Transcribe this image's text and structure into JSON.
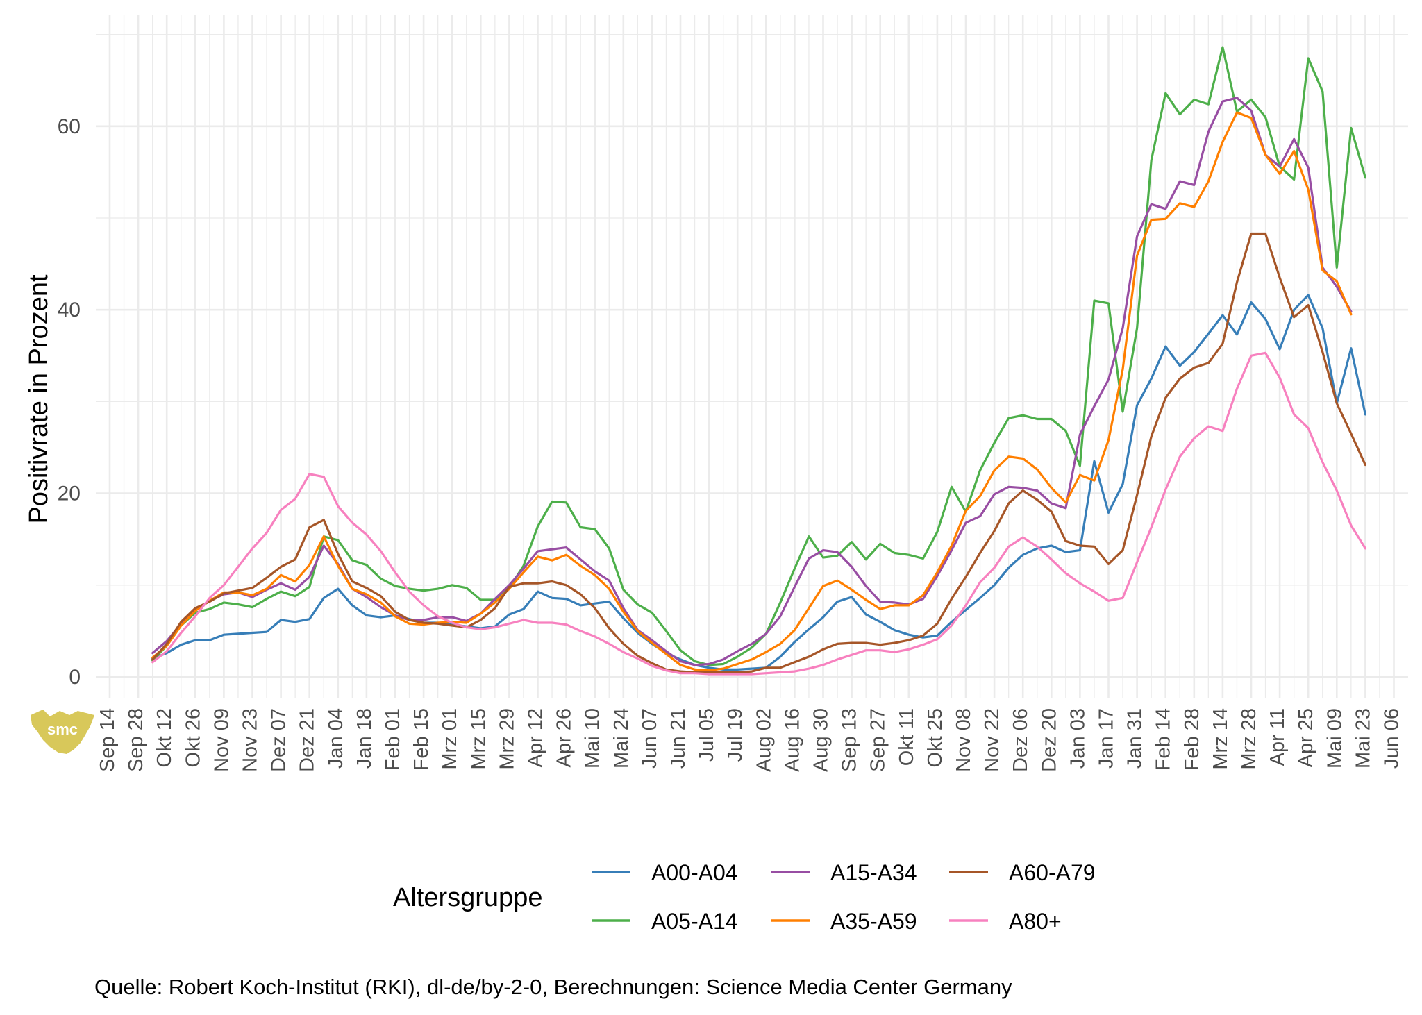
{
  "chart_data": {
    "type": "line",
    "title": "",
    "xlabel": "",
    "ylabel": "Positivrate in Prozent",
    "ylim": [
      -3,
      72
    ],
    "yticks": [
      0,
      20,
      40,
      60
    ],
    "grid": true,
    "legend_title": "Altersgruppe",
    "legend_position": "bottom",
    "caption": "Quelle: Robert Koch-Institut (RKI), dl-de/by-2-0, Berechnungen: Science Media Center Germany",
    "logo_text": "smc",
    "x_tick_labels": [
      "Sep 14",
      "Sep 28",
      "Okt 12",
      "Okt 26",
      "Nov 09",
      "Nov 23",
      "Dez 07",
      "Dez 21",
      "Jan 04",
      "Jan 18",
      "Feb 01",
      "Feb 15",
      "Mrz 01",
      "Mrz 15",
      "Mrz 29",
      "Apr 12",
      "Apr 26",
      "Mai 10",
      "Mai 24",
      "Jun 07",
      "Jun 21",
      "Jul 05",
      "Jul 19",
      "Aug 02",
      "Aug 16",
      "Aug 30",
      "Sep 13",
      "Sep 27",
      "Okt 11",
      "Okt 25",
      "Nov 08",
      "Nov 22",
      "Dez 06",
      "Dez 20",
      "Jan 03",
      "Jan 17",
      "Jan 31",
      "Feb 14",
      "Feb 28",
      "Mrz 14",
      "Mrz 28",
      "Apr 11",
      "Apr 25",
      "Mai 09",
      "Mai 23",
      "Jun 06"
    ],
    "x_week_count": 91,
    "series": [
      {
        "name": "A00-A04",
        "color": "#377eb8",
        "values": [
          2.0,
          2.6,
          3.5,
          4.0,
          4.0,
          4.6,
          4.7,
          4.8,
          4.9,
          6.2,
          6.0,
          6.3,
          8.6,
          9.6,
          7.8,
          6.7,
          6.5,
          6.7,
          6.3,
          5.9,
          5.9,
          5.7,
          5.5,
          5.3,
          5.5,
          6.8,
          7.4,
          9.3,
          8.6,
          8.5,
          7.8,
          8.0,
          8.2,
          6.4,
          4.8,
          3.6,
          2.6,
          1.9,
          1.3,
          1.0,
          0.8,
          0.8,
          0.9,
          1.0,
          2.2,
          3.8,
          5.2,
          6.5,
          8.2,
          8.7,
          6.8,
          6.0,
          5.1,
          4.6,
          4.3,
          4.5,
          6.0,
          7.3,
          8.6,
          10.0,
          11.9,
          13.3,
          14.0,
          14.3,
          13.6,
          13.8,
          23.5,
          17.9,
          21.0,
          29.6,
          32.5,
          36.0,
          33.9,
          35.4,
          37.4,
          39.4,
          37.3,
          40.8,
          39.0,
          35.7,
          40.0,
          41.6,
          38.0,
          29.8,
          35.8,
          28.6
        ]
      },
      {
        "name": "A05-A14",
        "color": "#4daf4a",
        "values": [
          1.8,
          3.4,
          5.6,
          7.0,
          7.4,
          8.1,
          7.9,
          7.6,
          8.5,
          9.3,
          8.8,
          9.8,
          15.3,
          14.9,
          12.7,
          12.2,
          10.7,
          9.9,
          9.6,
          9.4,
          9.6,
          10.0,
          9.7,
          8.4,
          8.4,
          9.7,
          12.1,
          16.4,
          19.1,
          19.0,
          16.3,
          16.1,
          14.0,
          9.5,
          7.9,
          7.0,
          5.0,
          2.9,
          1.7,
          1.3,
          1.4,
          2.2,
          3.2,
          4.7,
          8.1,
          11.8,
          15.3,
          13.0,
          13.2,
          14.7,
          12.8,
          14.5,
          13.5,
          13.3,
          12.9,
          15.8,
          20.7,
          18.0,
          22.5,
          25.5,
          28.2,
          28.5,
          28.1,
          28.1,
          26.8,
          23.0,
          41.0,
          40.7,
          28.9,
          38.0,
          56.3,
          63.6,
          61.3,
          62.9,
          62.4,
          68.6,
          61.6,
          62.9,
          61.0,
          55.6,
          54.2,
          67.4,
          63.8,
          44.6,
          59.8,
          54.4
        ]
      },
      {
        "name": "A15-A34",
        "color": "#984ea3",
        "values": [
          2.6,
          3.9,
          5.8,
          7.3,
          8.3,
          9.0,
          9.2,
          8.7,
          9.5,
          10.2,
          9.5,
          10.9,
          14.3,
          12.3,
          9.6,
          8.7,
          7.6,
          6.7,
          6.2,
          6.2,
          6.5,
          6.5,
          6.1,
          6.9,
          8.5,
          10.0,
          11.8,
          13.7,
          13.9,
          14.1,
          12.8,
          11.5,
          10.5,
          7.5,
          5.1,
          4.0,
          2.8,
          1.7,
          1.3,
          1.4,
          1.9,
          2.8,
          3.6,
          4.7,
          6.6,
          9.8,
          12.9,
          13.8,
          13.6,
          12.0,
          9.9,
          8.2,
          8.1,
          7.9,
          8.5,
          11.0,
          13.8,
          16.8,
          17.5,
          19.9,
          20.7,
          20.6,
          20.3,
          18.9,
          18.4,
          26.4,
          29.5,
          32.4,
          38.0,
          48.0,
          51.5,
          51.0,
          54.0,
          53.6,
          59.4,
          62.7,
          63.1,
          61.7,
          56.9,
          55.6,
          58.6,
          55.5,
          44.6,
          42.5,
          39.8
        ]
      },
      {
        "name": "A35-A59",
        "color": "#ff7f00",
        "values": [
          2.1,
          3.4,
          5.6,
          7.2,
          8.3,
          9.2,
          9.2,
          8.9,
          9.6,
          11.1,
          10.4,
          12.2,
          15.3,
          12.1,
          9.6,
          9.0,
          8.1,
          6.6,
          5.8,
          5.7,
          5.9,
          6.0,
          5.9,
          6.9,
          8.1,
          9.6,
          11.4,
          13.1,
          12.7,
          13.3,
          12.1,
          11.1,
          9.6,
          7.1,
          5.0,
          3.7,
          2.5,
          1.3,
          0.8,
          0.7,
          0.9,
          1.4,
          1.9,
          2.7,
          3.6,
          5.1,
          7.5,
          9.9,
          10.5,
          9.5,
          8.4,
          7.4,
          7.8,
          7.8,
          8.9,
          11.4,
          14.3,
          18.1,
          19.7,
          22.5,
          24.0,
          23.8,
          22.6,
          20.6,
          19.0,
          22.0,
          21.4,
          25.8,
          33.5,
          45.9,
          49.8,
          49.9,
          51.6,
          51.2,
          54.0,
          58.3,
          61.5,
          60.9,
          56.9,
          54.8,
          57.3,
          53.1,
          44.3,
          43.1,
          39.5
        ]
      },
      {
        "name": "A60-A79",
        "color": "#a65628",
        "values": [
          1.9,
          3.6,
          6.0,
          7.5,
          8.2,
          9.1,
          9.4,
          9.7,
          10.8,
          12.0,
          12.8,
          16.3,
          17.1,
          13.4,
          10.4,
          9.7,
          8.8,
          7.1,
          6.2,
          5.9,
          5.8,
          5.6,
          5.4,
          6.2,
          7.5,
          9.8,
          10.2,
          10.2,
          10.4,
          10.0,
          9.0,
          7.5,
          5.3,
          3.6,
          2.3,
          1.5,
          0.8,
          0.6,
          0.5,
          0.5,
          0.5,
          0.5,
          0.6,
          1.0,
          1.0,
          1.6,
          2.2,
          3.0,
          3.6,
          3.7,
          3.7,
          3.5,
          3.7,
          4.0,
          4.5,
          5.8,
          8.5,
          10.9,
          13.5,
          15.9,
          18.9,
          20.3,
          19.3,
          18.0,
          14.8,
          14.3,
          14.2,
          12.3,
          13.8,
          19.8,
          26.2,
          30.4,
          32.5,
          33.7,
          34.2,
          36.3,
          43.0,
          48.3,
          48.3,
          43.5,
          39.2,
          40.5,
          35.4,
          29.8,
          26.5,
          23.1
        ]
      },
      {
        "name": "A80+",
        "color": "#f781bf",
        "values": [
          1.6,
          2.8,
          4.8,
          6.6,
          8.6,
          10.0,
          12.0,
          14.0,
          15.7,
          18.2,
          19.4,
          22.1,
          21.8,
          18.6,
          16.8,
          15.5,
          13.7,
          11.4,
          9.3,
          7.8,
          6.6,
          5.9,
          5.4,
          5.2,
          5.4,
          5.8,
          6.2,
          5.9,
          5.9,
          5.7,
          5.0,
          4.4,
          3.6,
          2.7,
          2.0,
          1.2,
          0.7,
          0.4,
          0.4,
          0.3,
          0.3,
          0.3,
          0.3,
          0.4,
          0.5,
          0.6,
          0.9,
          1.3,
          1.9,
          2.4,
          2.9,
          2.9,
          2.7,
          3.0,
          3.5,
          4.1,
          5.6,
          7.8,
          10.3,
          11.9,
          14.2,
          15.2,
          14.2,
          12.8,
          11.3,
          10.2,
          9.3,
          8.3,
          8.6,
          12.5,
          16.3,
          20.4,
          24.0,
          26.0,
          27.3,
          26.8,
          31.4,
          35.0,
          35.3,
          32.6,
          28.6,
          27.1,
          23.4,
          20.3,
          16.5,
          14.0
        ]
      }
    ]
  }
}
